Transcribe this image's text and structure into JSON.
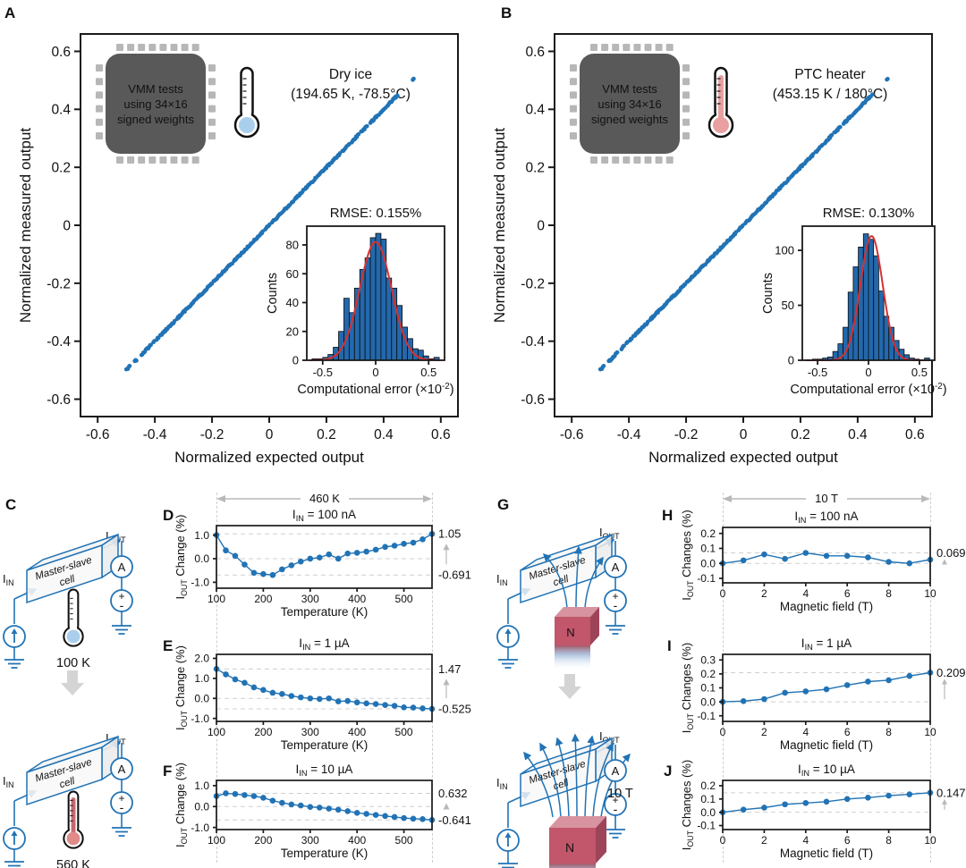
{
  "panels": {
    "A": {
      "label": "A",
      "chip": [
        "VMM tests",
        "using 34×16",
        "signed weights"
      ],
      "condition": [
        "Dry ice",
        "(194.65 K, -78.5°C)"
      ]
    },
    "B": {
      "label": "B",
      "chip": [
        "VMM tests",
        "using 34×16",
        "signed weights"
      ],
      "condition": [
        "PTC heater",
        "(453.15 K / 180°C)"
      ]
    },
    "C": {
      "label": "C",
      "i": "I",
      "sub_in": "IN",
      "sub_out": "OUT",
      "cell_line1": "Master-slave",
      "cell_line2": "cell",
      "ammeter": "A",
      "plus": "+",
      "minus": "-",
      "temp_cold": "100 K",
      "temp_hot": "560 K"
    },
    "D": {
      "label": "D"
    },
    "E": {
      "label": "E"
    },
    "F": {
      "label": "F"
    },
    "G": {
      "label": "G",
      "pole": "N",
      "field": "10 T"
    },
    "H": {
      "label": "H"
    },
    "I": {
      "label": "I"
    },
    "J": {
      "label": "J"
    }
  },
  "span": {
    "temperature": "460 K",
    "magnetic": "10 T"
  },
  "colors": {
    "accent_blue": "#2173b5",
    "hist_bar": "#2368ac",
    "fit_red": "#d63230",
    "chip_body": "#595959",
    "chip_pin": "#b7b7b7",
    "thermo_cold": "#a9cfed",
    "thermo_hot": "#e9a0a0",
    "magnet_front": "#c2566b",
    "magnet_top": "#d893a0",
    "magnet_side": "#9e4458",
    "dash_gray": "#cfcfcf",
    "arrow_gray": "#b9b9b9"
  },
  "chart_data": [
    {
      "id": "A_scatter",
      "type": "scatter",
      "xlabel": "Normalized expected output",
      "ylabel": "Normalized measured output",
      "xlim": [
        -0.66,
        0.66
      ],
      "ylim": [
        -0.66,
        0.66
      ],
      "xticks": [
        [
          -0.6,
          "-0.6"
        ],
        [
          -0.4,
          "-0.4"
        ],
        [
          -0.2,
          "-0.2"
        ],
        [
          0,
          "0"
        ],
        [
          0.2,
          "0.2"
        ],
        [
          0.4,
          "0.4"
        ],
        [
          0.6,
          "0.6"
        ]
      ],
      "yticks": [
        [
          0.6,
          "0.6"
        ],
        [
          0.4,
          "0.4"
        ],
        [
          0.2,
          "0.2"
        ],
        [
          0,
          "0"
        ],
        [
          -0.2,
          "-0.2"
        ],
        [
          -0.4,
          "-0.4"
        ],
        [
          -0.6,
          "-0.6"
        ]
      ],
      "points": {
        "relation": "y = x",
        "min": -0.5,
        "max": 0.505,
        "n": 340,
        "gaps": [
          [
            -0.487,
            -0.471
          ],
          [
            -0.463,
            -0.449
          ],
          [
            0.452,
            0.5
          ]
        ]
      }
    },
    {
      "id": "A_hist",
      "type": "histogram",
      "title": "RMSE: 0.155%",
      "ylabel": "Counts",
      "xlabel_parts": [
        [
          "Computational error (×10",
          0
        ],
        [
          "-2",
          2
        ],
        [
          ")",
          0
        ]
      ],
      "xlim": [
        -0.65,
        0.65
      ],
      "ylim": [
        0,
        93
      ],
      "xticks": [
        [
          -0.5,
          "-0.5"
        ],
        [
          0,
          "0"
        ],
        [
          0.5,
          "0.5"
        ]
      ],
      "yticks": [
        [
          0,
          "0"
        ],
        [
          20,
          "20"
        ],
        [
          40,
          "40"
        ],
        [
          60,
          "60"
        ],
        [
          80,
          "80"
        ]
      ],
      "bin_start": -0.6,
      "bin_width": 0.05,
      "counts": [
        1,
        1,
        2,
        4,
        9,
        20,
        43,
        33,
        50,
        63,
        71,
        85,
        88,
        84,
        57,
        50,
        38,
        23,
        15,
        8,
        7,
        3,
        1,
        2
      ],
      "fit": {
        "amp": 82,
        "mean": 0.0,
        "sigma": 0.15
      }
    },
    {
      "id": "B_scatter",
      "type": "scatter",
      "xlabel": "Normalized expected output",
      "ylabel": "Normalized measured output",
      "xlim": [
        -0.66,
        0.66
      ],
      "ylim": [
        -0.66,
        0.66
      ],
      "xticks": [
        [
          -0.6,
          "-0.6"
        ],
        [
          -0.4,
          "-0.4"
        ],
        [
          -0.2,
          "-0.2"
        ],
        [
          0,
          "0"
        ],
        [
          0.2,
          "0.2"
        ],
        [
          0.4,
          "0.4"
        ],
        [
          0.6,
          "0.6"
        ]
      ],
      "yticks": [
        [
          0.6,
          "0.6"
        ],
        [
          0.4,
          "0.4"
        ],
        [
          0.2,
          "0.2"
        ],
        [
          0,
          "0"
        ],
        [
          -0.2,
          "-0.2"
        ],
        [
          -0.4,
          "-0.4"
        ],
        [
          -0.6,
          "-0.6"
        ]
      ],
      "points": {
        "relation": "y = x",
        "min": -0.5,
        "max": 0.505,
        "n": 340,
        "gaps": [
          [
            -0.487,
            -0.471
          ],
          [
            -0.44,
            -0.428
          ],
          [
            0.452,
            0.5
          ]
        ]
      }
    },
    {
      "id": "B_hist",
      "type": "histogram",
      "title": "RMSE: 0.130%",
      "ylabel": "Counts",
      "xlabel_parts": [
        [
          "Computational error (×10",
          0
        ],
        [
          "-2",
          2
        ],
        [
          ")",
          0
        ]
      ],
      "xlim": [
        -0.65,
        0.65
      ],
      "ylim": [
        0,
        122
      ],
      "xticks": [
        [
          -0.5,
          "-0.5"
        ],
        [
          0,
          "0"
        ],
        [
          0.5,
          "0.5"
        ]
      ],
      "yticks": [
        [
          0,
          "0"
        ],
        [
          50,
          "50"
        ],
        [
          100,
          "100"
        ]
      ],
      "bin_start": -0.6,
      "bin_width": 0.05,
      "counts": [
        0,
        1,
        1,
        2,
        3,
        8,
        15,
        30,
        62,
        85,
        103,
        115,
        110,
        95,
        63,
        40,
        30,
        18,
        10,
        5,
        2,
        1,
        0,
        2
      ],
      "fit": {
        "amp": 113,
        "mean": 0.03,
        "sigma": 0.11
      }
    },
    {
      "id": "D",
      "type": "line",
      "title_parts": [
        [
          "I",
          0
        ],
        [
          "IN",
          1
        ],
        [
          " = 100 nA",
          0
        ]
      ],
      "ylabel_parts": [
        [
          "I",
          0
        ],
        [
          "OUT",
          1
        ],
        [
          " Change (%)",
          0
        ]
      ],
      "xlabel": "Temperature (K)",
      "xlim": [
        100,
        560
      ],
      "ylim": [
        -1.25,
        1.4
      ],
      "xticks": [
        [
          100,
          "100"
        ],
        [
          200,
          "200"
        ],
        [
          300,
          "300"
        ],
        [
          400,
          "400"
        ],
        [
          500,
          "500"
        ]
      ],
      "yticks": [
        [
          1.0,
          "1.0"
        ],
        [
          0.0,
          "0.0"
        ],
        [
          -1.0,
          "-1.0"
        ]
      ],
      "x": [
        100,
        120,
        140,
        160,
        180,
        200,
        220,
        240,
        260,
        280,
        300,
        320,
        340,
        360,
        380,
        400,
        420,
        440,
        460,
        480,
        500,
        520,
        540,
        560
      ],
      "y": [
        1.0,
        0.35,
        0.12,
        -0.25,
        -0.6,
        -0.65,
        -0.691,
        -0.45,
        -0.28,
        -0.12,
        0.0,
        0.05,
        0.18,
        0.0,
        0.22,
        0.25,
        0.3,
        0.38,
        0.5,
        0.55,
        0.63,
        0.68,
        0.82,
        1.05
      ],
      "ann": {
        "max": 1.05,
        "max_label": "1.05",
        "min": -0.691,
        "min_label": "-0.691"
      }
    },
    {
      "id": "E",
      "type": "line",
      "title_parts": [
        [
          "I",
          0
        ],
        [
          "IN",
          1
        ],
        [
          " = 1 µA",
          0
        ]
      ],
      "ylabel_parts": [
        [
          "I",
          0
        ],
        [
          "OUT",
          1
        ],
        [
          " Change (%)",
          0
        ]
      ],
      "xlabel": "Temperature (K)",
      "xlim": [
        100,
        560
      ],
      "ylim": [
        -1.15,
        2.2
      ],
      "xticks": [
        [
          100,
          "100"
        ],
        [
          200,
          "200"
        ],
        [
          300,
          "300"
        ],
        [
          400,
          "400"
        ],
        [
          500,
          "500"
        ]
      ],
      "yticks": [
        [
          2.0,
          "2.0"
        ],
        [
          1.0,
          "1.0"
        ],
        [
          0.0,
          "0.0"
        ],
        [
          -1.0,
          "-1.0"
        ]
      ],
      "x": [
        100,
        120,
        140,
        160,
        180,
        200,
        220,
        240,
        260,
        280,
        300,
        320,
        340,
        360,
        380,
        400,
        420,
        440,
        460,
        480,
        500,
        520,
        540,
        560
      ],
      "y": [
        1.47,
        1.2,
        0.95,
        0.78,
        0.55,
        0.42,
        0.28,
        0.22,
        0.12,
        0.05,
        0.0,
        -0.03,
        0.0,
        -0.15,
        -0.13,
        -0.2,
        -0.25,
        -0.28,
        -0.33,
        -0.37,
        -0.45,
        -0.46,
        -0.5,
        -0.525
      ],
      "ann": {
        "max": 1.47,
        "max_label": "1.47",
        "min": -0.525,
        "min_label": "-0.525"
      }
    },
    {
      "id": "F",
      "type": "line",
      "title_parts": [
        [
          "I",
          0
        ],
        [
          "IN",
          1
        ],
        [
          " = 10 µA",
          0
        ]
      ],
      "ylabel_parts": [
        [
          "I",
          0
        ],
        [
          "OUT",
          1
        ],
        [
          " Change (%)",
          0
        ]
      ],
      "xlabel": "Temperature (K)",
      "xlim": [
        100,
        560
      ],
      "ylim": [
        -1.1,
        1.25
      ],
      "xticks": [
        [
          100,
          "100"
        ],
        [
          200,
          "200"
        ],
        [
          300,
          "300"
        ],
        [
          400,
          "400"
        ],
        [
          500,
          "500"
        ]
      ],
      "yticks": [
        [
          1.0,
          "1.0"
        ],
        [
          0.0,
          "0.0"
        ],
        [
          -1.0,
          "-1.0"
        ]
      ],
      "x": [
        100,
        120,
        140,
        160,
        180,
        200,
        220,
        240,
        260,
        280,
        300,
        320,
        340,
        360,
        380,
        400,
        420,
        440,
        460,
        480,
        500,
        520,
        540,
        560
      ],
      "y": [
        0.5,
        0.632,
        0.6,
        0.55,
        0.5,
        0.42,
        0.28,
        0.18,
        0.1,
        0.05,
        -0.02,
        -0.05,
        -0.1,
        -0.15,
        -0.22,
        -0.3,
        -0.35,
        -0.4,
        -0.45,
        -0.5,
        -0.55,
        -0.58,
        -0.6,
        -0.641
      ],
      "ann": {
        "max": 0.632,
        "max_label": "0.632",
        "min": -0.641,
        "min_label": "-0.641"
      }
    },
    {
      "id": "H",
      "type": "line",
      "title_parts": [
        [
          "I",
          0
        ],
        [
          "IN",
          1
        ],
        [
          " = 100 nA",
          0
        ]
      ],
      "ylabel_parts": [
        [
          "I",
          0
        ],
        [
          "OUT",
          1
        ],
        [
          " Changes (%)",
          0
        ]
      ],
      "xlabel": "Magnetic field (T)",
      "xlim": [
        0,
        10
      ],
      "ylim": [
        -0.13,
        0.24
      ],
      "xticks": [
        [
          0,
          "0"
        ],
        [
          2,
          "2"
        ],
        [
          4,
          "4"
        ],
        [
          6,
          "6"
        ],
        [
          8,
          "8"
        ],
        [
          10,
          "10"
        ]
      ],
      "yticks": [
        [
          0.2,
          "0.2"
        ],
        [
          0.1,
          "0.1"
        ],
        [
          0.0,
          "0.0"
        ],
        [
          -0.1,
          "-0.1"
        ]
      ],
      "x": [
        0,
        1,
        2,
        3,
        4,
        5,
        6,
        7,
        8,
        9,
        10
      ],
      "y": [
        0.0,
        0.02,
        0.06,
        0.03,
        0.0699,
        0.05,
        0.05,
        0.04,
        0.01,
        0.0,
        0.025
      ],
      "ann": {
        "max": 0.0699,
        "max_label": "0.0699",
        "min": 0,
        "min_label": null
      }
    },
    {
      "id": "I",
      "type": "line",
      "title_parts": [
        [
          "I",
          0
        ],
        [
          "IN",
          1
        ],
        [
          " = 1 µA",
          0
        ]
      ],
      "ylabel_parts": [
        [
          "I",
          0
        ],
        [
          "OUT",
          1
        ],
        [
          " Changes (%)",
          0
        ]
      ],
      "xlabel": "Magnetic field (T)",
      "xlim": [
        0,
        10
      ],
      "ylim": [
        -0.14,
        0.34
      ],
      "xticks": [
        [
          0,
          "0"
        ],
        [
          2,
          "2"
        ],
        [
          4,
          "4"
        ],
        [
          6,
          "6"
        ],
        [
          8,
          "8"
        ],
        [
          10,
          "10"
        ]
      ],
      "yticks": [
        [
          0.3,
          "0.3"
        ],
        [
          0.2,
          "0.2"
        ],
        [
          0.1,
          "0.1"
        ],
        [
          0.0,
          "0.0"
        ],
        [
          -0.1,
          "-0.1"
        ]
      ],
      "x": [
        0,
        1,
        2,
        3,
        4,
        5,
        6,
        7,
        8,
        9,
        10
      ],
      "y": [
        0.0,
        0.005,
        0.02,
        0.065,
        0.075,
        0.09,
        0.12,
        0.145,
        0.155,
        0.185,
        0.209
      ],
      "ann": {
        "max": 0.209,
        "max_label": "0.209",
        "min": 0,
        "min_label": null
      }
    },
    {
      "id": "J",
      "type": "line",
      "title_parts": [
        [
          "I",
          0
        ],
        [
          "IN",
          1
        ],
        [
          " = 10 µA",
          0
        ]
      ],
      "ylabel_parts": [
        [
          "I",
          0
        ],
        [
          "OUT",
          1
        ],
        [
          " Changes (%)",
          0
        ]
      ],
      "xlabel": "Magnetic field (T)",
      "xlim": [
        0,
        10
      ],
      "ylim": [
        -0.13,
        0.24
      ],
      "xticks": [
        [
          0,
          "0"
        ],
        [
          2,
          "2"
        ],
        [
          4,
          "4"
        ],
        [
          6,
          "6"
        ],
        [
          8,
          "8"
        ],
        [
          10,
          "10"
        ]
      ],
      "yticks": [
        [
          0.2,
          "0.2"
        ],
        [
          0.1,
          "0.1"
        ],
        [
          0.0,
          "0.0"
        ],
        [
          -0.1,
          "-0.1"
        ]
      ],
      "x": [
        0,
        1,
        2,
        3,
        4,
        5,
        6,
        7,
        8,
        9,
        10
      ],
      "y": [
        0.0,
        0.02,
        0.035,
        0.06,
        0.07,
        0.08,
        0.1,
        0.11,
        0.125,
        0.135,
        0.147
      ],
      "ann": {
        "max": 0.147,
        "max_label": "0.147",
        "min": 0,
        "min_label": null
      }
    }
  ]
}
